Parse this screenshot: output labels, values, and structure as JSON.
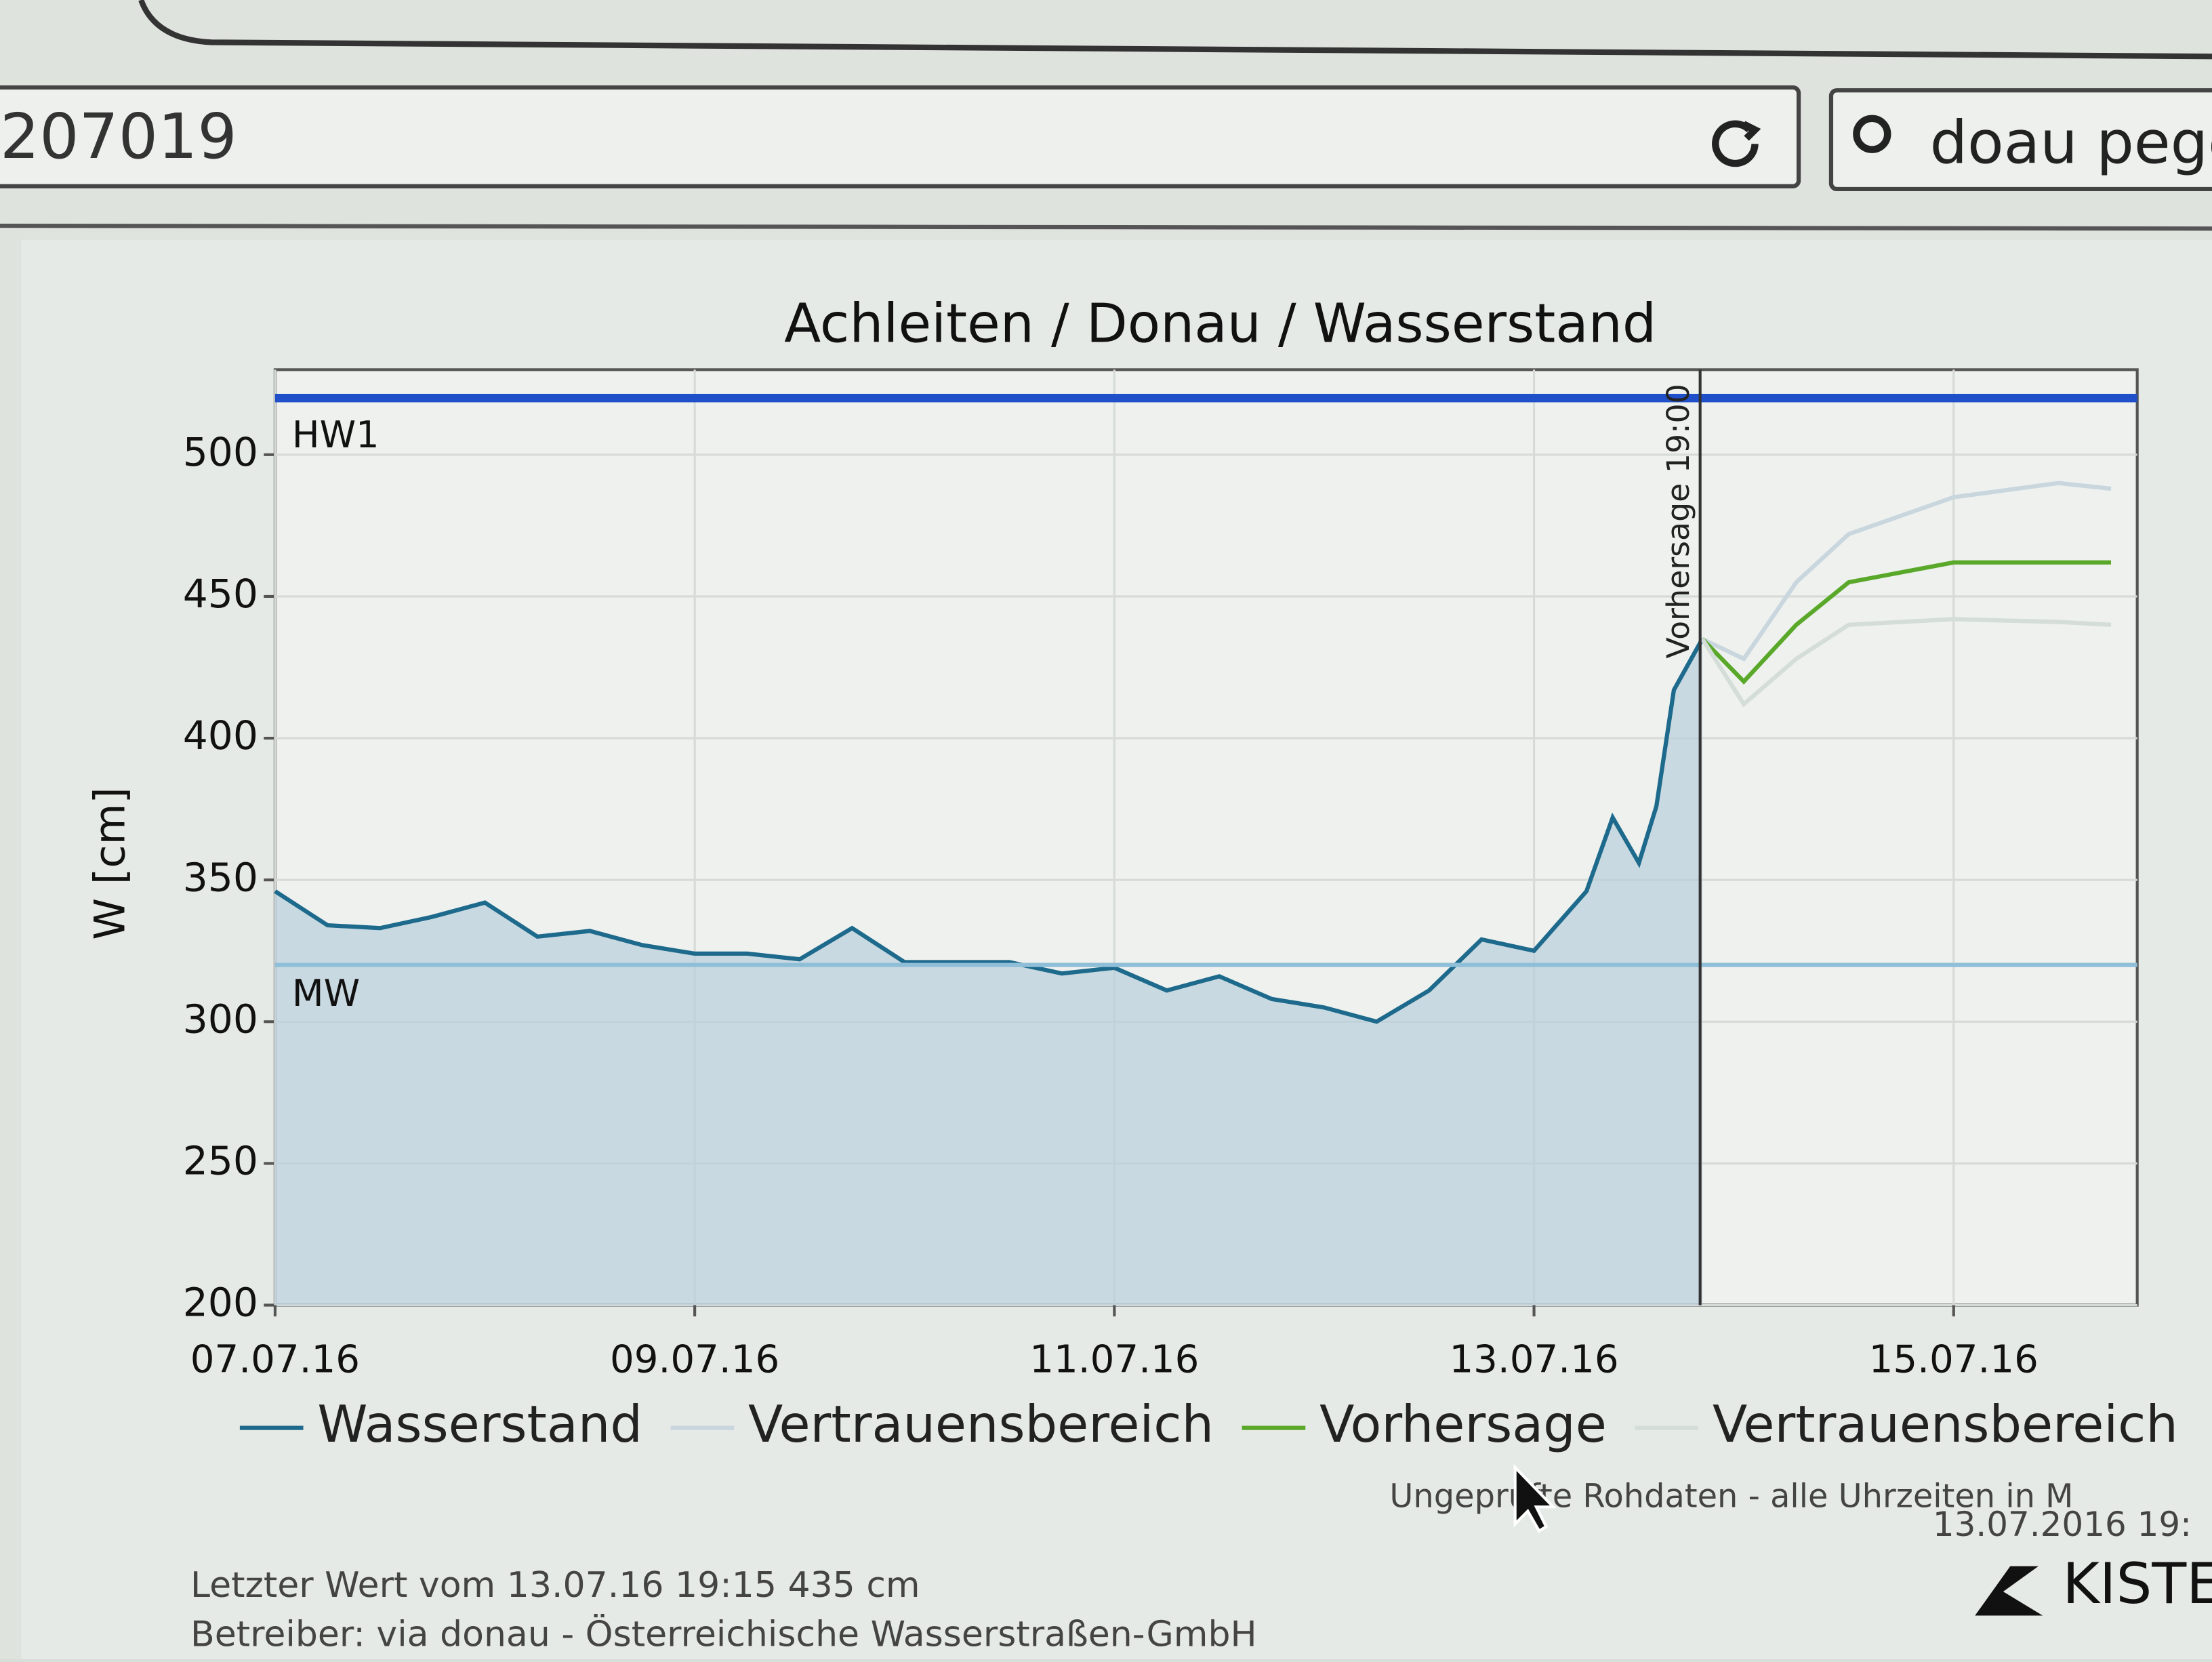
{
  "browser": {
    "url": "207019",
    "search": "doau pege"
  },
  "chart_data": {
    "type": "line",
    "title": "Achleiten / Donau / Wasserstand",
    "y_label": "W [cm]",
    "xlim": [
      "07.07.16",
      "15.07.16 21:00"
    ],
    "xticks": [
      "07.07.16",
      "09.07.16",
      "11.07.16",
      "13.07.16",
      "15.07.16"
    ],
    "ylim": [
      200,
      530
    ],
    "yticks": [
      200,
      250,
      300,
      350,
      400,
      450,
      500
    ],
    "grid": true,
    "reference_lines": [
      {
        "label": "HW1",
        "value": 520,
        "color": "#1f4fc9"
      },
      {
        "label": "MW",
        "value": 320,
        "color": "#8fbfd8"
      }
    ],
    "forecast_marker": {
      "label": "Vorhersage 19:00",
      "x": "13.07.16 19:00"
    },
    "series": [
      {
        "name": "Wasserstand",
        "color": "#1d6a8c",
        "fill": true,
        "x": [
          "07.07.16 00:00",
          "07.07.16 06:00",
          "07.07.16 12:00",
          "07.07.16 18:00",
          "08.07.16 00:00",
          "08.07.16 06:00",
          "08.07.16 12:00",
          "08.07.16 18:00",
          "09.07.16 00:00",
          "09.07.16 06:00",
          "09.07.16 12:00",
          "09.07.16 18:00",
          "10.07.16 00:00",
          "10.07.16 06:00",
          "10.07.16 12:00",
          "10.07.16 18:00",
          "11.07.16 00:00",
          "11.07.16 06:00",
          "11.07.16 12:00",
          "11.07.16 18:00",
          "12.07.16 00:00",
          "12.07.16 06:00",
          "12.07.16 12:00",
          "12.07.16 18:00",
          "13.07.16 00:00",
          "13.07.16 06:00",
          "13.07.16 09:00",
          "13.07.16 12:00",
          "13.07.16 14:00",
          "13.07.16 16:00",
          "13.07.16 19:15"
        ],
        "values": [
          346,
          334,
          333,
          337,
          342,
          330,
          332,
          327,
          324,
          324,
          322,
          333,
          321,
          321,
          321,
          317,
          319,
          311,
          316,
          308,
          305,
          300,
          311,
          329,
          325,
          346,
          372,
          356,
          376,
          417,
          435
        ]
      },
      {
        "name": "Vertrauensbereich",
        "color": "#c9d6de",
        "x": [
          "13.07.16 19:15",
          "14.07.16 00:00",
          "14.07.16 06:00",
          "14.07.16 12:00",
          "15.07.16 00:00",
          "15.07.16 12:00",
          "15.07.16 18:00"
        ],
        "values": [
          435,
          428,
          455,
          472,
          485,
          490,
          488
        ]
      },
      {
        "name": "Vorhersage",
        "color": "#5aa82a",
        "x": [
          "13.07.16 19:15",
          "14.07.16 00:00",
          "14.07.16 06:00",
          "14.07.16 12:00",
          "15.07.16 00:00",
          "15.07.16 12:00",
          "15.07.16 18:00"
        ],
        "values": [
          435,
          420,
          440,
          455,
          462,
          462,
          462
        ]
      },
      {
        "name": "Vertrauensbereich",
        "color": "#d4ddd8",
        "x": [
          "13.07.16 19:15",
          "14.07.16 00:00",
          "14.07.16 06:00",
          "14.07.16 12:00",
          "15.07.16 00:00",
          "15.07.16 12:00",
          "15.07.16 18:00"
        ],
        "values": [
          435,
          412,
          428,
          440,
          442,
          441,
          440
        ]
      }
    ]
  },
  "footer": {
    "last_value": "Letzter Wert vom 13.07.16 19:15 435 cm",
    "operator": "Betreiber: via donau - Österreichische Wasserstraßen-GmbH",
    "note": "Ungeprüfte Rohdaten - alle Uhrzeiten in M",
    "timestamp": "13.07.2016 19:",
    "brand": "KISTER"
  }
}
